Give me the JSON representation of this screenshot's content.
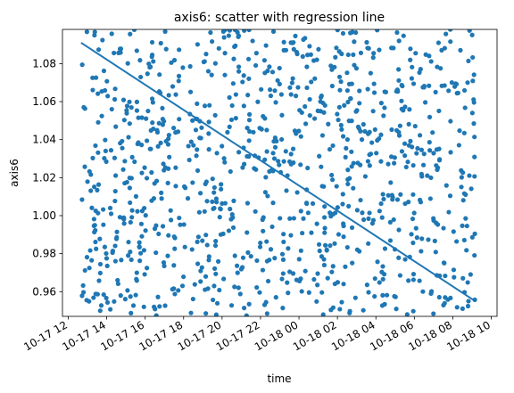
{
  "chart_data": {
    "type": "scatter",
    "title": "axis6: scatter with regression line",
    "xlabel": "time",
    "ylabel": "axis6",
    "xlim": [
      "2020-10-17 11:42",
      "2020-10-18 10:18"
    ],
    "ylim": [
      0.947,
      1.098
    ],
    "x_ticks": [
      "10-17 12",
      "10-17 14",
      "10-17 16",
      "10-17 18",
      "10-17 20",
      "10-17 22",
      "10-18 00",
      "10-18 02",
      "10-18 04",
      "10-18 06",
      "10-18 08",
      "10-18 10"
    ],
    "y_ticks": [
      "0.96",
      "0.98",
      "1.00",
      "1.02",
      "1.04",
      "1.06",
      "1.08"
    ],
    "grid": false,
    "series": [
      {
        "kind": "points",
        "color": "#1f77b4",
        "x_range": [
          "2020-10-17 12:40",
          "2020-10-18 09:10"
        ],
        "y_range": [
          0.947,
          1.098
        ],
        "approx_count": 1000,
        "distribution": "roughly uniform noise"
      },
      {
        "kind": "regression-line",
        "color": "#1f77b4",
        "start": {
          "x": "2020-10-17 12:40",
          "y": 1.091
        },
        "end": {
          "x": "2020-10-18 09:10",
          "y": 0.955
        }
      }
    ]
  }
}
